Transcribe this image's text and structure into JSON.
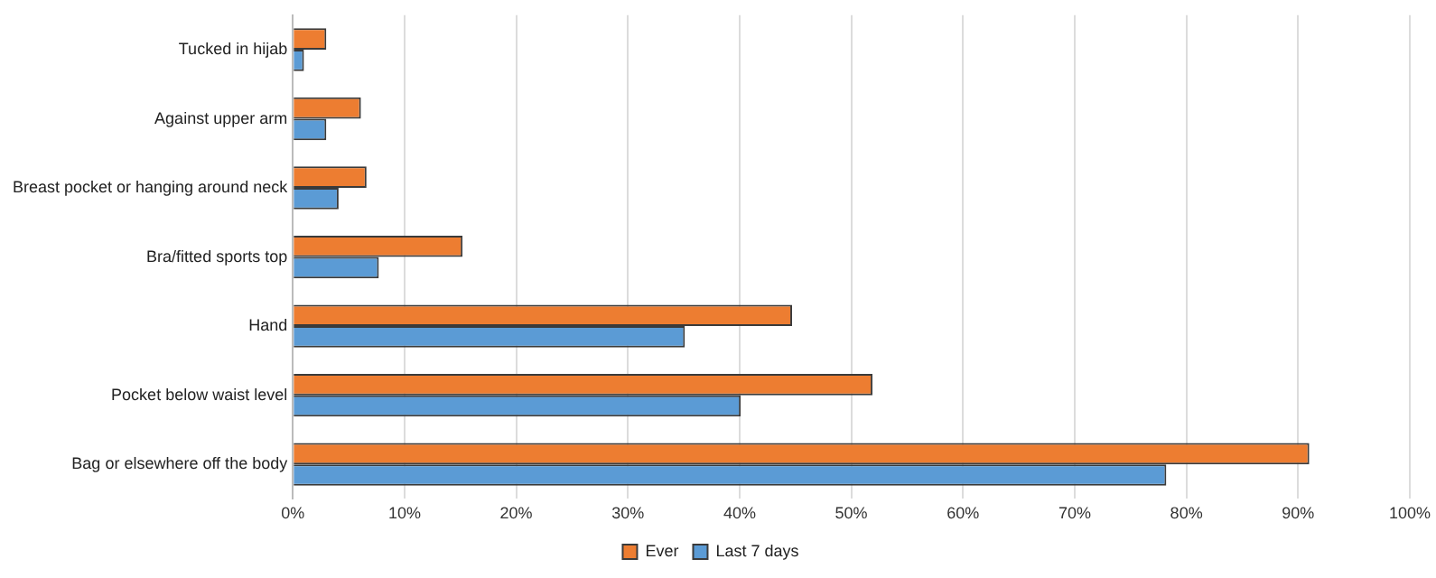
{
  "chart_data": {
    "type": "bar",
    "orientation": "horizontal",
    "categories": [
      "Tucked in hijab",
      "Against upper arm",
      "Breast pocket or hanging around neck",
      "Bra/fitted sports top",
      "Hand",
      "Pocket below waist level",
      "Bag or elsewhere off the body"
    ],
    "series": [
      {
        "name": "Ever",
        "color": "#ed7d31",
        "values": [
          3.0,
          6.1,
          6.6,
          15.2,
          44.7,
          51.9,
          91.0
        ]
      },
      {
        "name": "Last 7 days",
        "color": "#5b9bd5",
        "values": [
          1.0,
          3.0,
          4.1,
          7.7,
          35.1,
          40.1,
          78.2
        ]
      }
    ],
    "xlim": [
      0,
      100
    ],
    "xticks": [
      {
        "value": 0,
        "label": "0%"
      },
      {
        "value": 10,
        "label": "10%"
      },
      {
        "value": 20,
        "label": "20%"
      },
      {
        "value": 30,
        "label": "30%"
      },
      {
        "value": 40,
        "label": "40%"
      },
      {
        "value": 50,
        "label": "50%"
      },
      {
        "value": 60,
        "label": "60%"
      },
      {
        "value": 70,
        "label": "70%"
      },
      {
        "value": 80,
        "label": "80%"
      },
      {
        "value": 90,
        "label": "90%"
      },
      {
        "value": 100,
        "label": "100%"
      }
    ],
    "grid": "x",
    "legend": "bottom"
  }
}
